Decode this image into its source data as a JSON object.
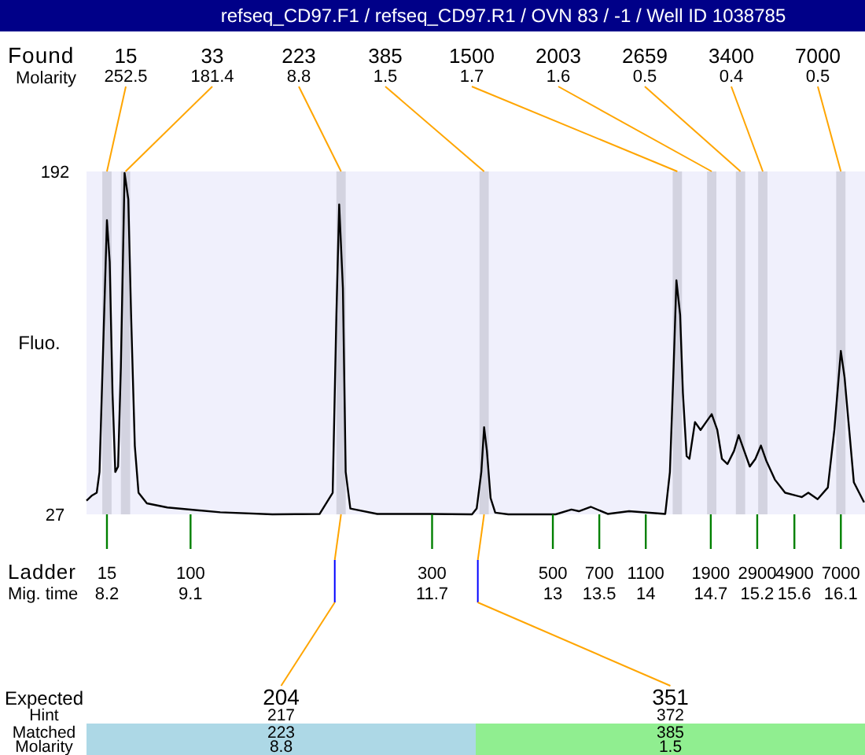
{
  "chart_data": {
    "type": "line",
    "title": "refseq_CD97.F1 / refseq_CD97.R1 / OVN 83 / -1 / Well ID 1038785",
    "ylabel": "Fluo.",
    "xlabel": "Mig. time",
    "xlim": [
      7.98,
      16.36
    ],
    "ylim": [
      27,
      192
    ],
    "yticks": [
      27,
      192
    ],
    "xticks": [
      {
        "value": 8.2,
        "label": "8.2"
      },
      {
        "value": 9.1,
        "label": "9.1"
      },
      {
        "value": 11.7,
        "label": "11.7"
      },
      {
        "value": 13,
        "label": "13"
      },
      {
        "value": 13.5,
        "label": "13.5"
      },
      {
        "value": 14,
        "label": "14"
      },
      {
        "value": 14.7,
        "label": "14.7"
      },
      {
        "value": 15.2,
        "label": "15.2"
      },
      {
        "value": 15.6,
        "label": "15.6"
      },
      {
        "value": 16.1,
        "label": "16.1"
      }
    ],
    "grid": false,
    "line_style": "solid",
    "series": [
      {
        "color": "#000000",
        "x": [
          7.98,
          8.04,
          8.09,
          8.12,
          8.15,
          8.2,
          8.23,
          8.26,
          8.29,
          8.32,
          8.35,
          8.39,
          8.43,
          8.46,
          8.5,
          8.54,
          8.63,
          8.85,
          9.42,
          9.98,
          10.49,
          10.63,
          10.67,
          10.7,
          10.74,
          10.77,
          10.82,
          11.11,
          11.67,
          12.13,
          12.18,
          12.23,
          12.26,
          12.29,
          12.33,
          12.38,
          12.52,
          13.03,
          13.2,
          13.28,
          13.41,
          13.59,
          13.82,
          14.21,
          14.26,
          14.3,
          14.33,
          14.37,
          14.4,
          14.44,
          14.47,
          14.53,
          14.59,
          14.65,
          14.71,
          14.77,
          14.82,
          14.88,
          14.95,
          15.0,
          15.06,
          15.12,
          15.18,
          15.24,
          15.3,
          15.39,
          15.5,
          15.68,
          15.75,
          15.85,
          15.96,
          16.03,
          16.1,
          16.14,
          16.19,
          16.24,
          16.35
        ],
        "values": [
          33.6,
          36.1,
          37.4,
          47.4,
          92.9,
          168.6,
          148.4,
          85.3,
          47.4,
          50,
          98,
          191.3,
          178.6,
          123,
          60,
          37.4,
          32.3,
          30.3,
          28,
          27,
          27.2,
          37.4,
          123,
          176.1,
          135.8,
          47.4,
          29.8,
          27.2,
          27.2,
          27,
          29.8,
          47.4,
          68.9,
          57.5,
          34.8,
          27.8,
          27,
          27,
          29.3,
          28.5,
          30.6,
          27.2,
          28.5,
          27.2,
          47.4,
          98,
          139.6,
          123,
          85.3,
          55,
          53.7,
          71.4,
          67.6,
          71.4,
          75.2,
          67.6,
          53.7,
          51.2,
          57.5,
          65.1,
          57.5,
          50,
          53.7,
          60.1,
          52.5,
          43.7,
          37.4,
          35.3,
          37.4,
          34.3,
          39.9,
          67.6,
          105.6,
          92.9,
          67.6,
          42.4,
          32.8
        ]
      }
    ],
    "bands": [
      {
        "axis": "x",
        "from": 8.15,
        "to": 8.25,
        "color": "#d3d3e0"
      },
      {
        "axis": "x",
        "from": 8.35,
        "to": 8.45,
        "color": "#d3d3e0"
      },
      {
        "axis": "x",
        "from": 10.67,
        "to": 10.77,
        "color": "#d3d3e0"
      },
      {
        "axis": "x",
        "from": 12.21,
        "to": 12.31,
        "color": "#d3d3e0"
      },
      {
        "axis": "x",
        "from": 14.29,
        "to": 14.39,
        "color": "#d3d3e0"
      },
      {
        "axis": "x",
        "from": 14.66,
        "to": 14.76,
        "color": "#d3d3e0"
      },
      {
        "axis": "x",
        "from": 14.97,
        "to": 15.07,
        "color": "#d3d3e0"
      },
      {
        "axis": "x",
        "from": 15.21,
        "to": 15.31,
        "color": "#d3d3e0"
      },
      {
        "axis": "x",
        "from": 16.05,
        "to": 16.15,
        "color": "#d3d3e0"
      }
    ],
    "annotations": [
      "Found",
      "Molarity",
      {
        "text": "15",
        "x": 8.2,
        "y": 192
      },
      {
        "text": "33",
        "x": 8.4,
        "y": 192
      },
      {
        "text": "223",
        "x": 10.72,
        "y": 192
      },
      {
        "text": "385",
        "x": 12.26,
        "y": 192
      },
      {
        "text": "1500",
        "x": 14.34,
        "y": 192
      },
      {
        "text": "2003",
        "x": 14.71,
        "y": 192
      },
      {
        "text": "2659",
        "x": 15.02,
        "y": 192
      },
      {
        "text": "3400",
        "x": 15.26,
        "y": 192
      },
      {
        "text": "7000",
        "x": 16.1,
        "y": 192
      },
      "252.5",
      "181.4",
      "8.8",
      "1.5",
      "1.7",
      "1.6",
      "0.5",
      "0.4",
      "0.5",
      "Ladder",
      "15",
      "100",
      "300",
      "500",
      "700",
      "1100",
      "1900",
      "2900",
      "4900",
      "7000",
      "Expected",
      "Hint",
      "Matched",
      "Molarity",
      "204",
      "217",
      "223",
      "8.8",
      "351",
      "372",
      "385",
      "1.5"
    ]
  }
}
